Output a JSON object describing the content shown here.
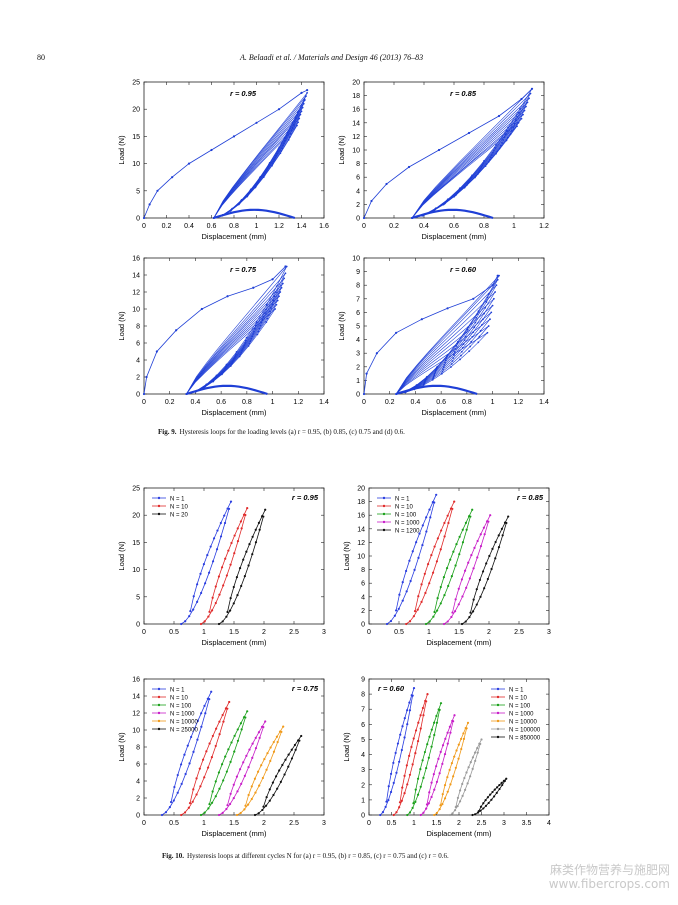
{
  "header": {
    "page_number": "80",
    "journal": "A. Belaadi et al. / Materials and Design 46 (2013) 76–83"
  },
  "fig9": {
    "caption_label": "Fig. 9.",
    "caption_text": "Hysteresis loops for the loading levels (a) r = 0.95, (b) 0.85, (c) 0.75 and (d) 0.6."
  },
  "fig10": {
    "caption_label": "Fig. 10.",
    "caption_text": "Hysteresis loops at different cycles N for (a) r = 0.95, (b) r = 0.85, (c) r = 0.75 and (c) r = 0.6."
  },
  "watermark": {
    "line1": "麻类作物营养与施肥网",
    "line2": "www.fibercrops.com"
  },
  "chart_data": [
    {
      "id": "fig9a",
      "type": "line",
      "annotation": "r = 0.95",
      "xlabel": "Displacement (mm)",
      "ylabel": "Load (N)",
      "xlim": [
        0,
        1.6
      ],
      "ylim": [
        0,
        25
      ],
      "xticks": [
        "0",
        "0.2",
        "0.4",
        "0.6",
        "0.8",
        "1",
        "1.2",
        "1.4",
        "1.6"
      ],
      "yticks": [
        "0",
        "5",
        "10",
        "15",
        "20",
        "25"
      ],
      "series": [
        {
          "color": "#1f3fd6",
          "first_cycle": {
            "x": [
              0,
              0.05,
              0.12,
              0.25,
              0.4,
              0.6,
              0.8,
              1.0,
              1.2,
              1.4,
              1.45
            ],
            "y": [
              0,
              2.5,
              5,
              7.5,
              10,
              12.5,
              15,
              17.5,
              20,
              23,
              23.5
            ]
          },
          "loop_peak_x": [
            1.36,
            1.37,
            1.38,
            1.39,
            1.4,
            1.41,
            1.42,
            1.43,
            1.44,
            1.45
          ],
          "loop_peak_y": [
            17,
            17.6,
            18.3,
            19,
            19.6,
            20.3,
            21,
            21.7,
            22.4,
            23
          ],
          "loop_start_x": 0.62
        }
      ]
    },
    {
      "id": "fig9b",
      "type": "line",
      "annotation": "r = 0.85",
      "xlabel": "Displacement (mm)",
      "ylabel": "Load (N)",
      "xlim": [
        0,
        1.2
      ],
      "ylim": [
        0,
        20
      ],
      "xticks": [
        "0",
        "0.2",
        "0.4",
        "0.6",
        "0.8",
        "1",
        "1.2"
      ],
      "yticks": [
        "0",
        "2",
        "4",
        "6",
        "8",
        "10",
        "12",
        "14",
        "16",
        "18",
        "20"
      ],
      "series": [
        {
          "color": "#1f3fd6",
          "first_cycle": {
            "x": [
              0,
              0.05,
              0.15,
              0.3,
              0.5,
              0.7,
              0.9,
              1.05,
              1.12
            ],
            "y": [
              0,
              2.5,
              5,
              7.5,
              10,
              12.5,
              15,
              17.5,
              19
            ]
          },
          "loop_peak_x": [
            1.02,
            1.03,
            1.05,
            1.06,
            1.07,
            1.08,
            1.09,
            1.1,
            1.11,
            1.12
          ],
          "loop_peak_y": [
            13.5,
            14,
            14.6,
            15.2,
            15.8,
            16.4,
            17,
            17.6,
            18.3,
            19
          ],
          "loop_start_x": 0.32
        }
      ]
    },
    {
      "id": "fig9c",
      "type": "line",
      "annotation": "r = 0.75",
      "xlabel": "Displacement (mm)",
      "ylabel": "Load (N)",
      "xlim": [
        0,
        1.4
      ],
      "ylim": [
        0,
        16
      ],
      "xticks": [
        "0",
        "0.2",
        "0.4",
        "0.6",
        "0.8",
        "1",
        "1.2",
        "1.4"
      ],
      "yticks": [
        "0",
        "2",
        "4",
        "6",
        "8",
        "10",
        "12",
        "14",
        "16"
      ],
      "series": [
        {
          "color": "#1f3fd6",
          "first_cycle": {
            "x": [
              0,
              0.02,
              0.1,
              0.25,
              0.45,
              0.65,
              0.85,
              1.0,
              1.1
            ],
            "y": [
              0,
              2,
              5,
              7.5,
              10,
              11.5,
              12.5,
              13.5,
              15
            ]
          },
          "loop_peak_x": [
            1.02,
            1.03,
            1.04,
            1.05,
            1.06,
            1.07,
            1.08,
            1.09,
            1.1,
            1.11
          ],
          "loop_peak_y": [
            10,
            10.5,
            11,
            11.5,
            12,
            12.5,
            13,
            13.6,
            14.2,
            15
          ],
          "loop_start_x": 0.33
        }
      ]
    },
    {
      "id": "fig9d",
      "type": "line",
      "annotation": "r = 0.60",
      "xlabel": "Displacement (mm)",
      "ylabel": "Load (N)",
      "xlim": [
        0,
        1.4
      ],
      "ylim": [
        0,
        10
      ],
      "xticks": [
        "0",
        "0.2",
        "0.4",
        "0.6",
        "0.8",
        "1",
        "1.2",
        "1.4"
      ],
      "yticks": [
        "0",
        "1",
        "2",
        "3",
        "4",
        "5",
        "6",
        "7",
        "8",
        "9",
        "10"
      ],
      "series": [
        {
          "color": "#1f3fd6",
          "first_cycle": {
            "x": [
              0,
              0.02,
              0.1,
              0.25,
              0.45,
              0.65,
              0.85,
              1.0,
              1.04
            ],
            "y": [
              0,
              1.5,
              3,
              4.5,
              5.5,
              6.3,
              7,
              8,
              8.7
            ]
          },
          "loop_peak_x": [
            0.96,
            0.97,
            0.98,
            0.99,
            1.0,
            1.01,
            1.02,
            1.03,
            1.04,
            1.05
          ],
          "loop_peak_y": [
            4.5,
            5,
            5.5,
            6,
            6.5,
            7,
            7.5,
            8,
            8.4,
            8.7
          ],
          "loop_start_x": 0.25
        }
      ]
    },
    {
      "id": "fig10a",
      "type": "line",
      "annotation": "r = 0.95",
      "xlabel": "Displacement (mm)",
      "ylabel": "Load (N)",
      "xlim": [
        0,
        3
      ],
      "ylim": [
        0,
        25
      ],
      "xticks": [
        "0",
        "0.5",
        "1",
        "1.5",
        "2",
        "2.5",
        "3"
      ],
      "yticks": [
        "0",
        "5",
        "10",
        "15",
        "20",
        "25"
      ],
      "legend_position": "top-left",
      "series": [
        {
          "name": "N = 1",
          "color": "#2a3ee0",
          "x0": 0.62,
          "x1": 1.45,
          "ymax": 22.5
        },
        {
          "name": "N = 10",
          "color": "#e02a2a",
          "x0": 0.95,
          "x1": 1.72,
          "ymax": 21.3
        },
        {
          "name": "N = 20",
          "color": "#111111",
          "x0": 1.25,
          "x1": 2.02,
          "ymax": 21
        }
      ]
    },
    {
      "id": "fig10b",
      "type": "line",
      "annotation": "r = 0.85",
      "xlabel": "Displacement (mm)",
      "ylabel": "Load (N)",
      "xlim": [
        0,
        3
      ],
      "ylim": [
        0,
        20
      ],
      "xticks": [
        "0",
        "0.5",
        "1",
        "1.5",
        "2",
        "2.5",
        "3"
      ],
      "yticks": [
        "0",
        "2",
        "4",
        "6",
        "8",
        "10",
        "12",
        "14",
        "16",
        "18",
        "20"
      ],
      "legend_position": "top-left",
      "series": [
        {
          "name": "N = 1",
          "color": "#2a3ee0",
          "x0": 0.3,
          "x1": 1.12,
          "ymax": 19
        },
        {
          "name": "N = 10",
          "color": "#e02a2a",
          "x0": 0.62,
          "x1": 1.42,
          "ymax": 18
        },
        {
          "name": "N = 100",
          "color": "#1aa01a",
          "x0": 0.95,
          "x1": 1.72,
          "ymax": 16.8
        },
        {
          "name": "N = 1000",
          "color": "#c81ec8",
          "x0": 1.25,
          "x1": 2.02,
          "ymax": 16
        },
        {
          "name": "N = 1200",
          "color": "#111111",
          "x0": 1.55,
          "x1": 2.32,
          "ymax": 15.8
        }
      ]
    },
    {
      "id": "fig10c",
      "type": "line",
      "annotation": "r = 0.75",
      "xlabel": "Displacement (mm)",
      "ylabel": "Load (N)",
      "xlim": [
        0,
        3
      ],
      "ylim": [
        0,
        16
      ],
      "xticks": [
        "0",
        "0.5",
        "1",
        "1.5",
        "2",
        "2.5",
        "3"
      ],
      "yticks": [
        "0",
        "2",
        "4",
        "6",
        "8",
        "10",
        "12",
        "14",
        "16"
      ],
      "legend_position": "top-left",
      "series": [
        {
          "name": "N = 1",
          "color": "#2a3ee0",
          "x0": 0.3,
          "x1": 1.12,
          "ymax": 14.5
        },
        {
          "name": "N = 10",
          "color": "#e02a2a",
          "x0": 0.62,
          "x1": 1.42,
          "ymax": 13.3
        },
        {
          "name": "N = 100",
          "color": "#1aa01a",
          "x0": 0.95,
          "x1": 1.72,
          "ymax": 12.2
        },
        {
          "name": "N = 1000",
          "color": "#c81ec8",
          "x0": 1.25,
          "x1": 2.02,
          "ymax": 11
        },
        {
          "name": "N = 10000",
          "color": "#f09a1a",
          "x0": 1.55,
          "x1": 2.32,
          "ymax": 10.4
        },
        {
          "name": "N = 25000",
          "color": "#111111",
          "x0": 1.85,
          "x1": 2.62,
          "ymax": 9.3
        }
      ]
    },
    {
      "id": "fig10d",
      "type": "line",
      "annotation": "r = 0.60",
      "xlabel": "Displacement (mm)",
      "ylabel": "Load (N)",
      "xlim": [
        0,
        4
      ],
      "ylim": [
        0,
        9
      ],
      "xticks": [
        "0",
        "0.5",
        "1",
        "1.5",
        "2",
        "2.5",
        "3",
        "3.5",
        "4"
      ],
      "yticks": [
        "0",
        "1",
        "2",
        "3",
        "4",
        "5",
        "6",
        "7",
        "8",
        "9"
      ],
      "legend_position": "top-right",
      "series": [
        {
          "name": "N = 1",
          "color": "#2a3ee0",
          "x0": 0.25,
          "x1": 1.0,
          "ymax": 8.4
        },
        {
          "name": "N = 10",
          "color": "#e02a2a",
          "x0": 0.55,
          "x1": 1.3,
          "ymax": 8
        },
        {
          "name": "N = 100",
          "color": "#1aa01a",
          "x0": 0.85,
          "x1": 1.6,
          "ymax": 7.4
        },
        {
          "name": "N = 1000",
          "color": "#c81ec8",
          "x0": 1.15,
          "x1": 1.9,
          "ymax": 6.6
        },
        {
          "name": "N = 10000",
          "color": "#f09a1a",
          "x0": 1.45,
          "x1": 2.2,
          "ymax": 6.1
        },
        {
          "name": "N = 100000",
          "color": "#9a9a9a",
          "x0": 1.8,
          "x1": 2.5,
          "ymax": 5
        },
        {
          "name": "N = 850000",
          "color": "#111111",
          "x0": 2.3,
          "x1": 3.05,
          "ymax": 2.4
        }
      ]
    }
  ]
}
